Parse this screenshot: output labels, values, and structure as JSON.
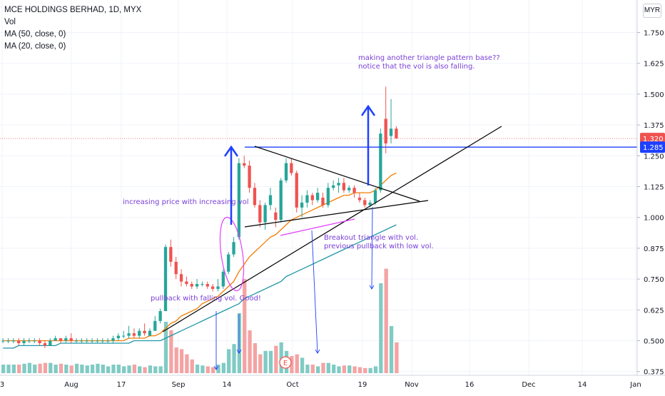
{
  "header": {
    "title": "MCE HOLDINGS BERHAD, 1D, MYX",
    "indicator_vol": "Vol",
    "indicator_ma50": "MA (50, close, 0)",
    "indicator_ma20": "MA (20, close, 0)",
    "currency": "MYR"
  },
  "colors": {
    "up": "#26a69a",
    "down": "#ef5350",
    "vol_up": "#80cbc4",
    "vol_down": "#f4a3a3",
    "ma20": "#f57c00",
    "ma50": "#2196a8",
    "drawing_blue": "#1e40ff",
    "annotation": "#7b3fd6",
    "price_tag": "#ef5350",
    "hline_tag": "#1e40ff"
  },
  "chart_data": {
    "type": "candlestick",
    "x_ticks": [
      "3",
      "Aug",
      "17",
      "Sep",
      "14",
      "Oct",
      "19",
      "Nov",
      "16",
      "Dec",
      "14",
      "Jan"
    ],
    "y_ticks": [
      "1.750",
      "1.625",
      "1.500",
      "1.375",
      "1.250",
      "1.125",
      "1.000",
      "0.875",
      "0.750",
      "0.625",
      "0.500",
      "0.375"
    ],
    "ylim": [
      0.36,
      1.8
    ],
    "last_price": "1.320",
    "hline_price": "1.285",
    "candles": [
      {
        "o": 0.5,
        "h": 0.51,
        "l": 0.49,
        "c": 0.5
      },
      {
        "o": 0.5,
        "h": 0.51,
        "l": 0.49,
        "c": 0.5
      },
      {
        "o": 0.5,
        "h": 0.51,
        "l": 0.49,
        "c": 0.5
      },
      {
        "o": 0.5,
        "h": 0.51,
        "l": 0.48,
        "c": 0.49
      },
      {
        "o": 0.49,
        "h": 0.51,
        "l": 0.48,
        "c": 0.5
      },
      {
        "o": 0.5,
        "h": 0.51,
        "l": 0.49,
        "c": 0.5
      },
      {
        "o": 0.5,
        "h": 0.51,
        "l": 0.49,
        "c": 0.5
      },
      {
        "o": 0.5,
        "h": 0.51,
        "l": 0.48,
        "c": 0.49
      },
      {
        "o": 0.49,
        "h": 0.5,
        "l": 0.47,
        "c": 0.48
      },
      {
        "o": 0.48,
        "h": 0.51,
        "l": 0.48,
        "c": 0.5
      },
      {
        "o": 0.5,
        "h": 0.52,
        "l": 0.5,
        "c": 0.51
      },
      {
        "o": 0.51,
        "h": 0.51,
        "l": 0.49,
        "c": 0.5
      },
      {
        "o": 0.5,
        "h": 0.52,
        "l": 0.49,
        "c": 0.51
      },
      {
        "o": 0.51,
        "h": 0.53,
        "l": 0.49,
        "c": 0.5
      },
      {
        "o": 0.5,
        "h": 0.51,
        "l": 0.49,
        "c": 0.5
      },
      {
        "o": 0.5,
        "h": 0.51,
        "l": 0.49,
        "c": 0.5
      },
      {
        "o": 0.5,
        "h": 0.51,
        "l": 0.49,
        "c": 0.5
      },
      {
        "o": 0.5,
        "h": 0.51,
        "l": 0.49,
        "c": 0.5
      },
      {
        "o": 0.5,
        "h": 0.51,
        "l": 0.49,
        "c": 0.5
      },
      {
        "o": 0.5,
        "h": 0.51,
        "l": 0.49,
        "c": 0.5
      },
      {
        "o": 0.5,
        "h": 0.51,
        "l": 0.49,
        "c": 0.5
      },
      {
        "o": 0.5,
        "h": 0.52,
        "l": 0.49,
        "c": 0.51
      },
      {
        "o": 0.51,
        "h": 0.53,
        "l": 0.5,
        "c": 0.52
      },
      {
        "o": 0.52,
        "h": 0.54,
        "l": 0.51,
        "c": 0.52
      },
      {
        "o": 0.52,
        "h": 0.56,
        "l": 0.51,
        "c": 0.53
      },
      {
        "o": 0.53,
        "h": 0.55,
        "l": 0.51,
        "c": 0.52
      },
      {
        "o": 0.52,
        "h": 0.55,
        "l": 0.51,
        "c": 0.54
      },
      {
        "o": 0.54,
        "h": 0.57,
        "l": 0.52,
        "c": 0.53
      },
      {
        "o": 0.52,
        "h": 0.55,
        "l": 0.52,
        "c": 0.54
      },
      {
        "o": 0.54,
        "h": 0.6,
        "l": 0.54,
        "c": 0.58
      },
      {
        "o": 0.58,
        "h": 0.63,
        "l": 0.57,
        "c": 0.62
      },
      {
        "o": 0.62,
        "h": 0.89,
        "l": 0.62,
        "c": 0.88
      },
      {
        "o": 0.88,
        "h": 0.91,
        "l": 0.8,
        "c": 0.82
      },
      {
        "o": 0.82,
        "h": 0.84,
        "l": 0.75,
        "c": 0.77
      },
      {
        "o": 0.77,
        "h": 0.79,
        "l": 0.72,
        "c": 0.74
      },
      {
        "o": 0.74,
        "h": 0.76,
        "l": 0.72,
        "c": 0.73
      },
      {
        "o": 0.73,
        "h": 0.74,
        "l": 0.71,
        "c": 0.72
      },
      {
        "o": 0.72,
        "h": 0.75,
        "l": 0.71,
        "c": 0.73
      },
      {
        "o": 0.73,
        "h": 0.74,
        "l": 0.72,
        "c": 0.73
      },
      {
        "o": 0.73,
        "h": 0.74,
        "l": 0.71,
        "c": 0.72
      },
      {
        "o": 0.72,
        "h": 0.73,
        "l": 0.7,
        "c": 0.71
      },
      {
        "o": 0.71,
        "h": 0.75,
        "l": 0.7,
        "c": 0.72
      },
      {
        "o": 0.72,
        "h": 0.79,
        "l": 0.71,
        "c": 0.78
      },
      {
        "o": 0.78,
        "h": 0.86,
        "l": 0.77,
        "c": 0.85
      },
      {
        "o": 0.85,
        "h": 0.92,
        "l": 0.84,
        "c": 0.9
      },
      {
        "o": 0.92,
        "h": 1.24,
        "l": 0.91,
        "c": 1.22
      },
      {
        "o": 1.22,
        "h": 1.25,
        "l": 1.2,
        "c": 1.21
      },
      {
        "o": 1.21,
        "h": 1.23,
        "l": 1.1,
        "c": 1.12
      },
      {
        "o": 1.12,
        "h": 1.14,
        "l": 1.04,
        "c": 1.05
      },
      {
        "o": 1.05,
        "h": 1.07,
        "l": 0.96,
        "c": 0.98
      },
      {
        "o": 0.98,
        "h": 1.06,
        "l": 0.95,
        "c": 1.05
      },
      {
        "o": 1.05,
        "h": 1.12,
        "l": 1.03,
        "c": 1.09
      },
      {
        "o": 1.02,
        "h": 1.04,
        "l": 0.96,
        "c": 0.99
      },
      {
        "o": 0.99,
        "h": 1.16,
        "l": 0.98,
        "c": 1.15
      },
      {
        "o": 1.15,
        "h": 1.24,
        "l": 1.14,
        "c": 1.22
      },
      {
        "o": 1.22,
        "h": 1.24,
        "l": 1.17,
        "c": 1.18
      },
      {
        "o": 1.18,
        "h": 1.19,
        "l": 1.02,
        "c": 1.04
      },
      {
        "o": 1.04,
        "h": 1.09,
        "l": 1.0,
        "c": 1.06
      },
      {
        "o": 1.06,
        "h": 1.11,
        "l": 1.04,
        "c": 1.09
      },
      {
        "o": 1.09,
        "h": 1.1,
        "l": 1.05,
        "c": 1.07
      },
      {
        "o": 1.07,
        "h": 1.12,
        "l": 1.06,
        "c": 1.1
      },
      {
        "o": 1.08,
        "h": 1.1,
        "l": 1.04,
        "c": 1.05
      },
      {
        "o": 1.05,
        "h": 1.14,
        "l": 1.04,
        "c": 1.12
      },
      {
        "o": 1.12,
        "h": 1.15,
        "l": 1.11,
        "c": 1.13
      },
      {
        "o": 1.13,
        "h": 1.16,
        "l": 1.1,
        "c": 1.14
      },
      {
        "o": 1.14,
        "h": 1.16,
        "l": 1.1,
        "c": 1.11
      },
      {
        "o": 1.11,
        "h": 1.13,
        "l": 1.1,
        "c": 1.12
      },
      {
        "o": 1.12,
        "h": 1.13,
        "l": 1.08,
        "c": 1.1
      },
      {
        "o": 1.08,
        "h": 1.1,
        "l": 1.06,
        "c": 1.07
      },
      {
        "o": 1.07,
        "h": 1.08,
        "l": 1.04,
        "c": 1.05
      },
      {
        "o": 1.05,
        "h": 1.07,
        "l": 1.04,
        "c": 1.06
      },
      {
        "o": 1.06,
        "h": 1.12,
        "l": 1.05,
        "c": 1.11
      },
      {
        "o": 1.11,
        "h": 1.36,
        "l": 1.1,
        "c": 1.34
      },
      {
        "o": 1.4,
        "h": 1.53,
        "l": 1.26,
        "c": 1.3
      },
      {
        "o": 1.33,
        "h": 1.48,
        "l": 1.3,
        "c": 1.36
      },
      {
        "o": 1.36,
        "h": 1.37,
        "l": 1.32,
        "c": 1.32
      }
    ],
    "volume": [
      0.1,
      0.1,
      0.1,
      0.1,
      0.11,
      0.12,
      0.1,
      0.11,
      0.12,
      0.12,
      0.1,
      0.11,
      0.1,
      0.09,
      0.11,
      0.1,
      0.09,
      0.1,
      0.11,
      0.1,
      0.08,
      0.1,
      0.1,
      0.08,
      0.09,
      0.1,
      0.08,
      0.07,
      0.09,
      0.08,
      0.08,
      0.6,
      0.5,
      0.3,
      0.28,
      0.22,
      0.16,
      0.1,
      0.09,
      0.08,
      0.07,
      0.1,
      0.12,
      0.28,
      0.34,
      0.7,
      1.1,
      0.5,
      0.35,
      0.22,
      0.26,
      0.26,
      0.32,
      0.36,
      0.26,
      0.2,
      0.22,
      0.18,
      0.1,
      0.1,
      0.08,
      0.12,
      0.12,
      0.1,
      0.08,
      0.09,
      0.09,
      0.08,
      0.07,
      0.06,
      0.06,
      0.08,
      1.05,
      1.22,
      0.55,
      0.36
    ],
    "ma20": [
      0.5,
      0.5,
      0.5,
      0.5,
      0.5,
      0.5,
      0.5,
      0.5,
      0.5,
      0.5,
      0.5,
      0.5,
      0.5,
      0.5,
      0.5,
      0.5,
      0.5,
      0.5,
      0.5,
      0.5,
      0.5,
      0.5,
      0.5,
      0.5,
      0.51,
      0.51,
      0.51,
      0.51,
      0.52,
      0.52,
      0.53,
      0.55,
      0.57,
      0.58,
      0.6,
      0.61,
      0.62,
      0.63,
      0.65,
      0.66,
      0.67,
      0.68,
      0.7,
      0.72,
      0.74,
      0.78,
      0.81,
      0.84,
      0.86,
      0.88,
      0.9,
      0.92,
      0.93,
      0.95,
      0.97,
      0.99,
      1.0,
      1.01,
      1.02,
      1.03,
      1.04,
      1.05,
      1.06,
      1.07,
      1.08,
      1.09,
      1.09,
      1.1,
      1.1,
      1.1,
      1.1,
      1.11,
      1.13,
      1.15,
      1.17,
      1.18
    ],
    "ma50": [
      0.47,
      0.47,
      0.47,
      0.48,
      0.48,
      0.48,
      0.48,
      0.48,
      0.48,
      0.48,
      0.48,
      0.49,
      0.49,
      0.49,
      0.49,
      0.49,
      0.49,
      0.49,
      0.49,
      0.49,
      0.49,
      0.49,
      0.49,
      0.49,
      0.49,
      0.5,
      0.5,
      0.5,
      0.5,
      0.5,
      0.5,
      0.51,
      0.52,
      0.53,
      0.54,
      0.55,
      0.56,
      0.57,
      0.58,
      0.59,
      0.6,
      0.61,
      0.62,
      0.63,
      0.64,
      0.65,
      0.67,
      0.68,
      0.69,
      0.7,
      0.71,
      0.72,
      0.73,
      0.74,
      0.76,
      0.77,
      0.78,
      0.79,
      0.8,
      0.81,
      0.82,
      0.83,
      0.84,
      0.85,
      0.86,
      0.87,
      0.88,
      0.89,
      0.9,
      0.91,
      0.92,
      0.93,
      0.94,
      0.95,
      0.96,
      0.97
    ]
  },
  "annotations": {
    "pattern_base": "making another triangle pattern base??",
    "vol_falling": "notice that the vol is also falling.",
    "increasing_price": "increasing price with increasing vol",
    "pullback": "pullback with falling vol. Good!",
    "breakout": "Breakout triangle with vol.",
    "prev_pullback": "previous pullback with low vol.",
    "event_marker": "E"
  }
}
